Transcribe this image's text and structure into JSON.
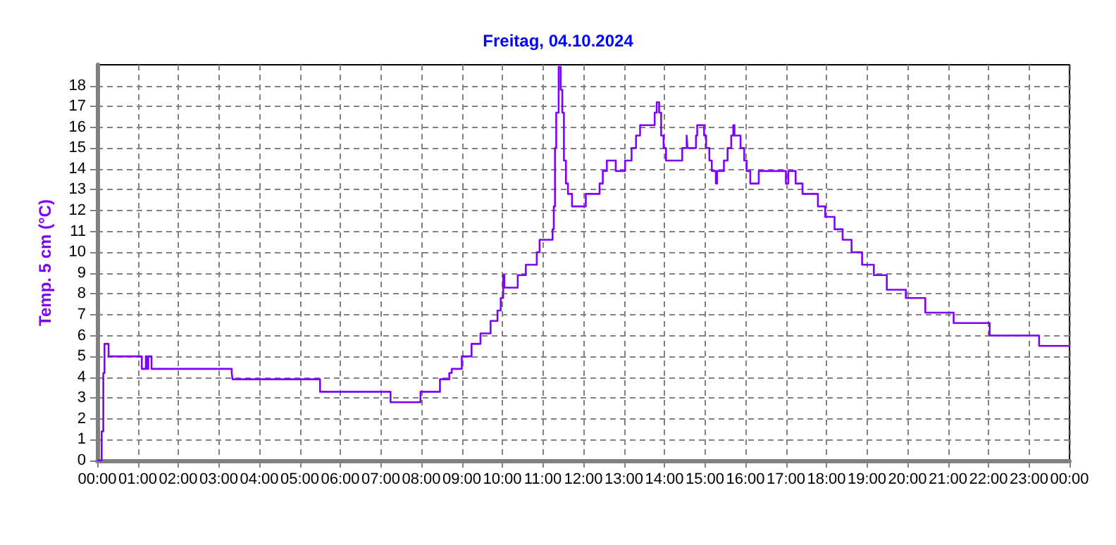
{
  "chart_data": {
    "type": "step",
    "title": "Freitag, 04.10.2024",
    "ylabel": "Temp. 5 cm (°C)",
    "xlim": [
      0,
      24
    ],
    "ylim": [
      0,
      19
    ],
    "xticks": [
      {
        "value": 0,
        "label": "00:00"
      },
      {
        "value": 1,
        "label": "01:00"
      },
      {
        "value": 2,
        "label": "02:00"
      },
      {
        "value": 3,
        "label": "03:00"
      },
      {
        "value": 4,
        "label": "04:00"
      },
      {
        "value": 5,
        "label": "05:00"
      },
      {
        "value": 6,
        "label": "06:00"
      },
      {
        "value": 7,
        "label": "07:00"
      },
      {
        "value": 8,
        "label": "08:00"
      },
      {
        "value": 9,
        "label": "09:00"
      },
      {
        "value": 10,
        "label": "10:00"
      },
      {
        "value": 11,
        "label": "11:00"
      },
      {
        "value": 12,
        "label": "12:00"
      },
      {
        "value": 13,
        "label": "13:00"
      },
      {
        "value": 14,
        "label": "14:00"
      },
      {
        "value": 15,
        "label": "15:00"
      },
      {
        "value": 16,
        "label": "16:00"
      },
      {
        "value": 17,
        "label": "17:00"
      },
      {
        "value": 18,
        "label": "18:00"
      },
      {
        "value": 19,
        "label": "19:00"
      },
      {
        "value": 20,
        "label": "20:00"
      },
      {
        "value": 21,
        "label": "21:00"
      },
      {
        "value": 22,
        "label": "22:00"
      },
      {
        "value": 23,
        "label": "23:00"
      },
      {
        "value": 24,
        "label": "00:00"
      }
    ],
    "yticks": [
      0,
      1,
      2,
      3,
      4,
      5,
      6,
      7,
      8,
      9,
      10,
      11,
      12,
      13,
      14,
      15,
      16,
      17,
      18
    ],
    "grid": true,
    "marker": "none",
    "line_style": "solid",
    "series": [
      {
        "color": "#8000ff",
        "x": [
          0,
          0.11,
          0.15,
          0.18,
          0.28,
          1.1,
          1.2,
          1.23,
          1.26,
          1.34,
          3.32,
          3.34,
          5.5,
          7.24,
          7.98,
          8.46,
          8.69,
          8.75,
          9.0,
          9.24,
          9.46,
          9.71,
          9.88,
          9.96,
          10.02,
          10.05,
          10.07,
          10.38,
          10.58,
          10.85,
          10.92,
          11.24,
          11.27,
          11.3,
          11.33,
          11.39,
          11.44,
          11.48,
          11.52,
          11.57,
          11.62,
          11.72,
          12.06,
          12.4,
          12.48,
          12.58,
          12.8,
          13.03,
          13.19,
          13.3,
          13.4,
          13.76,
          13.81,
          13.87,
          13.92,
          13.98,
          14.04,
          14.44,
          14.55,
          14.57,
          14.78,
          14.81,
          14.98,
          15.03,
          15.11,
          15.17,
          15.27,
          15.3,
          15.47,
          15.56,
          15.65,
          15.7,
          15.73,
          15.88,
          15.97,
          16.03,
          16.12,
          16.33,
          17.0,
          17.06,
          17.24,
          17.41,
          17.79,
          17.97,
          18.2,
          18.4,
          18.62,
          18.88,
          19.17,
          19.49,
          19.96,
          20.44,
          21.14,
          22.03,
          23.25,
          24
        ],
        "values": [
          0,
          1.4,
          4.2,
          5.6,
          5.0,
          4.4,
          5.0,
          4.4,
          5.0,
          4.4,
          4.2,
          3.9,
          3.3,
          2.8,
          3.3,
          3.9,
          4.2,
          4.4,
          5.0,
          5.6,
          6.1,
          6.7,
          7.2,
          7.8,
          8.9,
          8.3,
          8.3,
          8.9,
          9.4,
          10.0,
          10.6,
          11.1,
          12.2,
          15.0,
          16.7,
          18.9,
          17.8,
          16.7,
          14.4,
          13.3,
          12.8,
          12.2,
          12.8,
          13.3,
          13.9,
          14.4,
          13.9,
          14.4,
          15.0,
          15.6,
          16.1,
          16.7,
          17.2,
          16.7,
          15.6,
          15.0,
          14.4,
          15.0,
          15.6,
          15.0,
          15.6,
          16.1,
          15.6,
          15.0,
          14.4,
          13.9,
          13.3,
          13.9,
          14.4,
          15.0,
          15.6,
          16.1,
          15.6,
          15.0,
          14.4,
          13.9,
          13.3,
          13.9,
          13.3,
          13.9,
          13.3,
          12.8,
          12.2,
          11.7,
          11.1,
          10.6,
          10.0,
          9.4,
          8.9,
          8.2,
          7.8,
          7.1,
          6.6,
          6.0,
          5.5,
          5.5
        ]
      }
    ]
  }
}
